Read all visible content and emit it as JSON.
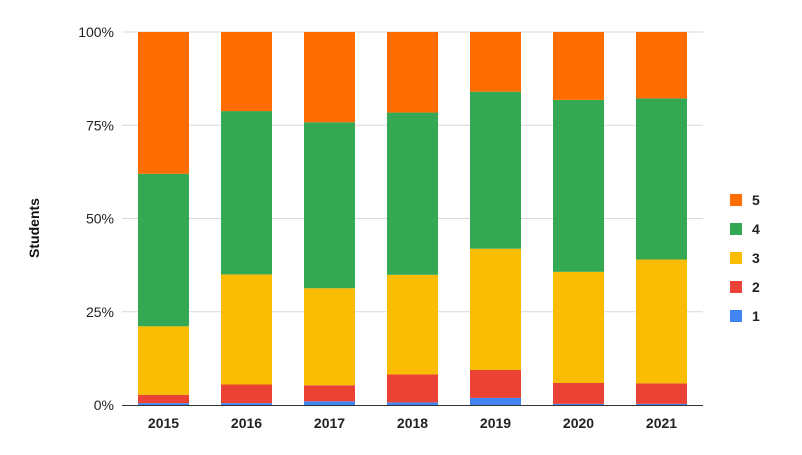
{
  "chart_data": {
    "type": "bar",
    "stacked": true,
    "normalized": true,
    "categories": [
      "2015",
      "2016",
      "2017",
      "2018",
      "2019",
      "2020",
      "2021"
    ],
    "ylabel": "Students",
    "xlabel": "",
    "ylim": [
      0,
      100
    ],
    "yticks": [
      "0%",
      "25%",
      "50%",
      "75%",
      "100%"
    ],
    "grid": true,
    "legend_position": "right",
    "series": [
      {
        "name": "1",
        "color": "#4285F4",
        "values": [
          0.5,
          0.5,
          1.0,
          0.7,
          1.9,
          0.3,
          0.3
        ]
      },
      {
        "name": "2",
        "color": "#EA4335",
        "values": [
          2.2,
          5.0,
          4.3,
          7.5,
          7.5,
          5.6,
          5.5
        ]
      },
      {
        "name": "3",
        "color": "#FBBC04",
        "values": [
          18.4,
          29.5,
          26.0,
          26.7,
          32.5,
          29.8,
          33.2
        ]
      },
      {
        "name": "4",
        "color": "#34A853",
        "values": [
          40.9,
          43.8,
          44.5,
          43.5,
          42.1,
          46.1,
          43.2
        ]
      },
      {
        "name": "5",
        "color": "#FF6D01",
        "values": [
          38.0,
          21.2,
          24.2,
          21.6,
          16.0,
          18.2,
          17.8
        ]
      }
    ]
  }
}
